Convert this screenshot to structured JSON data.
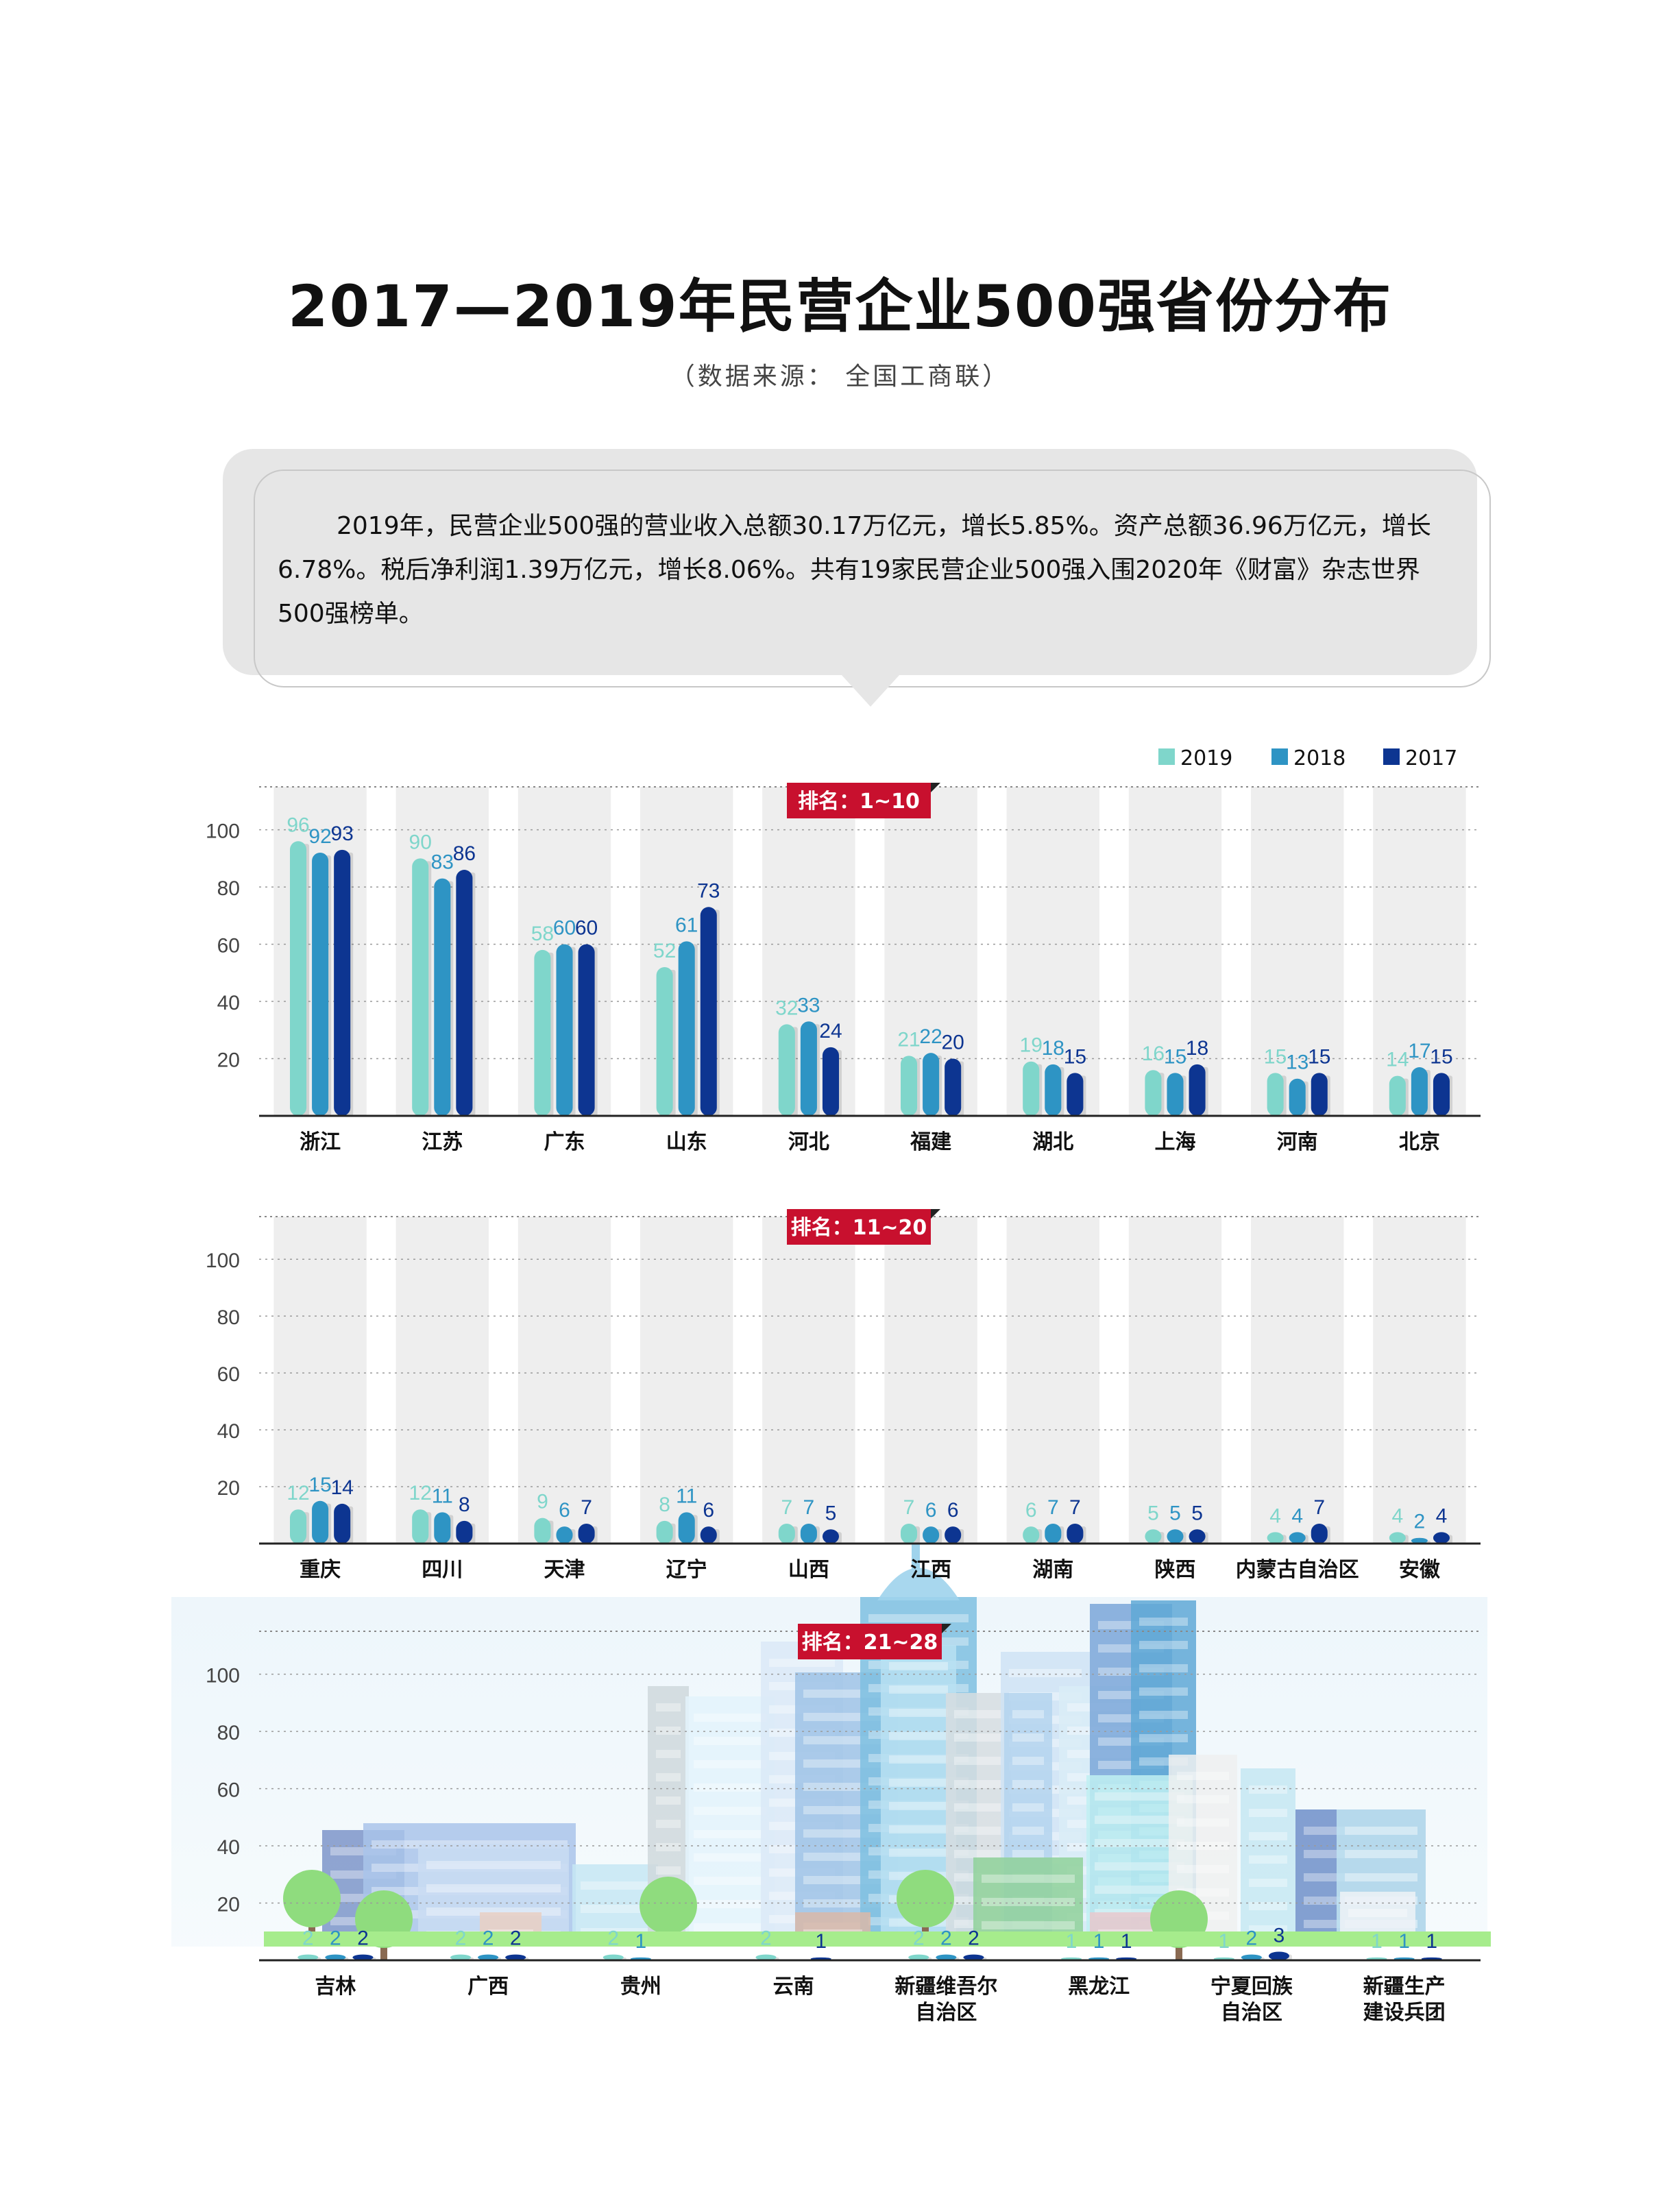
{
  "page": {
    "title": "2017—2019年民营企业500强省份分布",
    "source": "（数据来源： 全国工商联）",
    "summary": "2019年，民营企业500强的营业收入总额30.17万亿元，增长5.85%。资产总额36.96万亿元，增长6.78%。税后净利润1.39万亿元，增长8.06%。共有19家民营企业500强入围2020年《财富》杂志世界500强榜单。"
  },
  "colors": {
    "2019": "#7fd6cb",
    "2018": "#2e94c4",
    "2017": "#0d3591",
    "label_red": "#c8102e",
    "band": "#eeeeee"
  },
  "chart_data": [
    {
      "type": "bar",
      "title": "排名：1~10",
      "categories": [
        "浙江",
        "江苏",
        "广东",
        "山东",
        "河北",
        "福建",
        "湖北",
        "上海",
        "河南",
        "北京"
      ],
      "series": [
        {
          "name": "2019",
          "values": [
            96,
            90,
            58,
            52,
            32,
            21,
            19,
            16,
            15,
            14
          ]
        },
        {
          "name": "2018",
          "values": [
            92,
            83,
            60,
            61,
            33,
            22,
            18,
            15,
            13,
            17
          ]
        },
        {
          "name": "2017",
          "values": [
            93,
            86,
            60,
            73,
            24,
            20,
            15,
            18,
            15,
            15
          ]
        }
      ],
      "yticks": [
        20,
        40,
        60,
        80,
        100
      ],
      "ylim": [
        0,
        115
      ],
      "legend": "top-right",
      "grid": true
    },
    {
      "type": "bar",
      "title": "排名：11~20",
      "categories": [
        "重庆",
        "四川",
        "天津",
        "辽宁",
        "山西",
        "江西",
        "湖南",
        "陕西",
        "内蒙古自治区",
        "安徽"
      ],
      "series": [
        {
          "name": "2019",
          "values": [
            12,
            12,
            9,
            8,
            7,
            7,
            6,
            5,
            4,
            4
          ]
        },
        {
          "name": "2018",
          "values": [
            15,
            11,
            6,
            11,
            7,
            6,
            7,
            5,
            4,
            2
          ]
        },
        {
          "name": "2017",
          "values": [
            14,
            8,
            7,
            6,
            5,
            6,
            7,
            5,
            7,
            4
          ]
        }
      ],
      "yticks": [
        20,
        40,
        60,
        80,
        100
      ],
      "ylim": [
        0,
        115
      ],
      "grid": true
    },
    {
      "type": "bar",
      "title": "排名：21~28",
      "categories": [
        [
          "吉林"
        ],
        [
          "广西"
        ],
        [
          "贵州"
        ],
        [
          "云南"
        ],
        [
          "新疆维吾尔",
          "自治区"
        ],
        [
          "黑龙江"
        ],
        [
          "宁夏回族",
          "自治区"
        ],
        [
          "新疆生产",
          "建设兵团"
        ]
      ],
      "series": [
        {
          "name": "2019",
          "values": [
            2,
            2,
            2,
            2,
            2,
            1,
            1,
            1
          ]
        },
        {
          "name": "2018",
          "values": [
            2,
            2,
            1,
            null,
            2,
            1,
            2,
            1
          ]
        },
        {
          "name": "2017",
          "values": [
            2,
            2,
            null,
            1,
            2,
            1,
            3,
            1
          ]
        }
      ],
      "yticks": [
        20,
        40,
        60,
        80,
        100
      ],
      "ylim": [
        0,
        115
      ],
      "grid": true
    }
  ]
}
